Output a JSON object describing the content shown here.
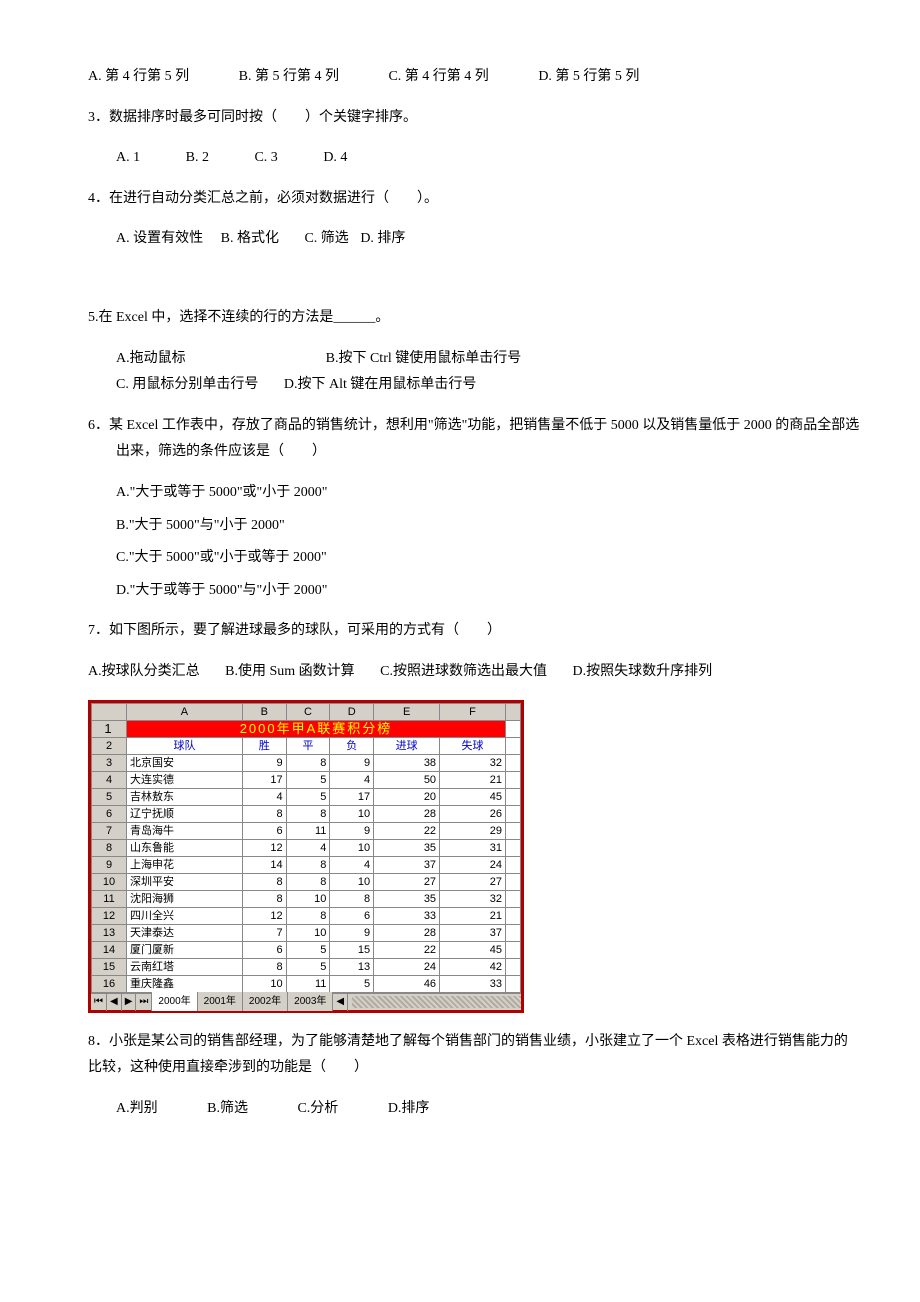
{
  "q2": {
    "A": "A. 第 4 行第 5 列",
    "B": "B. 第 5 行第 4 列",
    "C": "C. 第 4 行第 4 列",
    "D": "D. 第 5 行第 5 列"
  },
  "q3": {
    "text": "3．数据排序时最多可同时按（　　）个关键字排序。",
    "A": "A. 1",
    "B": "B. 2",
    "C": "C. 3",
    "D": "D. 4"
  },
  "q4": {
    "text": "4．在进行自动分类汇总之前，必须对数据进行（　　）。",
    "A": "A. 设置有效性",
    "B": "B. 格式化",
    "C": "C. 筛选",
    "D": "D. 排序"
  },
  "q5": {
    "text": "5.在 Excel 中，选择不连续的行的方法是______。",
    "A": "A.拖动鼠标",
    "B": "B.按下 Ctrl 键使用鼠标单击行号",
    "C": "C. 用鼠标分别单击行号",
    "D": "D.按下 Alt 键在用鼠标单击行号"
  },
  "q6": {
    "text": "6．某 Excel 工作表中，存放了商品的销售统计，想利用\"筛选\"功能，把销售量不低于 5000 以及销售量低于 2000 的商品全部选出来，筛选的条件应该是（　　）",
    "A": "A.\"大于或等于 5000\"或\"小于 2000\"",
    "B": "B.\"大于 5000\"与\"小于 2000\"",
    "C": "C.\"大于 5000\"或\"小于或等于 2000\"",
    "D": "D.\"大于或等于 5000\"与\"小于 2000\""
  },
  "q7": {
    "text": "7．如下图所示，要了解进球最多的球队，可采用的方式有（　　）",
    "A": "A.按球队分类汇总",
    "B": "B.使用 Sum 函数计算",
    "C": "C.按照进球数筛选出最大值",
    "D": "D.按照失球数升序排列"
  },
  "q8": {
    "text": "8．小张是某公司的销售部经理，为了能够清楚地了解每个销售部门的销售业绩，小张建立了一个 Excel 表格进行销售能力的比较，这种使用直接牵涉到的功能是（　　）",
    "A": "A.判别",
    "B": "B.筛选",
    "C": "C.分析",
    "D": "D.排序"
  },
  "table": {
    "title": "2000年甲A联赛积分榜",
    "cols": [
      "A",
      "B",
      "C",
      "D",
      "E",
      "F"
    ],
    "headers": [
      "球队",
      "胜",
      "平",
      "负",
      "进球",
      "失球"
    ],
    "rows": [
      [
        "北京国安",
        "9",
        "8",
        "9",
        "38",
        "32"
      ],
      [
        "大连实德",
        "17",
        "5",
        "4",
        "50",
        "21"
      ],
      [
        "吉林敖东",
        "4",
        "5",
        "17",
        "20",
        "45"
      ],
      [
        "辽宁抚顺",
        "8",
        "8",
        "10",
        "28",
        "26"
      ],
      [
        "青岛海牛",
        "6",
        "11",
        "9",
        "22",
        "29"
      ],
      [
        "山东鲁能",
        "12",
        "4",
        "10",
        "35",
        "31"
      ],
      [
        "上海申花",
        "14",
        "8",
        "4",
        "37",
        "24"
      ],
      [
        "深圳平安",
        "8",
        "8",
        "10",
        "27",
        "27"
      ],
      [
        "沈阳海狮",
        "8",
        "10",
        "8",
        "35",
        "32"
      ],
      [
        "四川全兴",
        "12",
        "8",
        "6",
        "33",
        "21"
      ],
      [
        "天津泰达",
        "7",
        "10",
        "9",
        "28",
        "37"
      ],
      [
        "厦门厦新",
        "6",
        "5",
        "15",
        "22",
        "45"
      ],
      [
        "云南红塔",
        "8",
        "5",
        "13",
        "24",
        "42"
      ],
      [
        "重庆隆鑫",
        "10",
        "11",
        "5",
        "46",
        "33"
      ]
    ],
    "tabs": [
      "2000年",
      "2001年",
      "2002年",
      "2003年"
    ]
  }
}
